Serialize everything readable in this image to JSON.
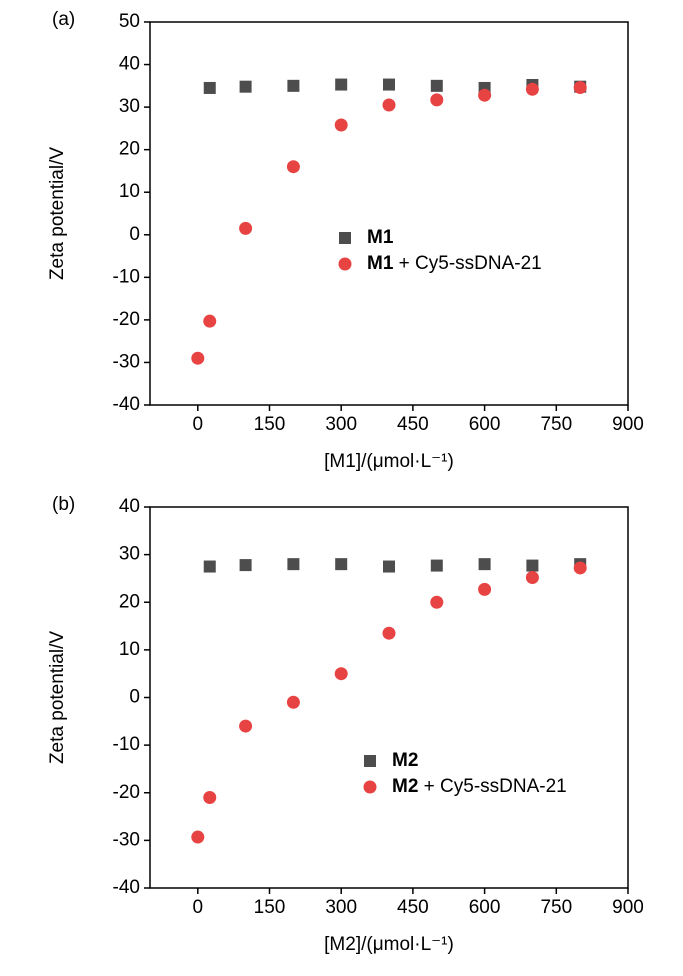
{
  "chart_data": [
    {
      "type": "scatter",
      "panel_label": "(a)",
      "x_label": "[M1]/(μmol·L⁻¹)",
      "y_label": "Zeta potential/V",
      "xlim": [
        -100,
        900
      ],
      "xticks": [
        0,
        150,
        300,
        450,
        600,
        750,
        900
      ],
      "ylim": [
        -40,
        50
      ],
      "yticks": [
        -40,
        -30,
        -20,
        -10,
        0,
        10,
        20,
        30,
        40,
        50
      ],
      "series": [
        {
          "name": "M1",
          "color": "#4d4d4d",
          "marker": "square",
          "x": [
            25,
            100,
            200,
            300,
            400,
            500,
            600,
            700,
            800
          ],
          "values": [
            34.5,
            34.8,
            35,
            35.3,
            35.3,
            35,
            34.5,
            35.2,
            34.8
          ]
        },
        {
          "name": "M1 + Cy5-ssDNA-21",
          "color": "#e84343",
          "marker": "circle",
          "x": [
            0,
            25,
            100,
            200,
            300,
            400,
            500,
            600,
            700,
            800
          ],
          "values": [
            -29,
            -20.3,
            1.5,
            16,
            25.8,
            30.5,
            31.7,
            32.8,
            34.2,
            34.6
          ]
        }
      ]
    },
    {
      "type": "scatter",
      "panel_label": "(b)",
      "x_label": "[M2]/(μmol·L⁻¹)",
      "y_label": "Zeta potential/V",
      "xlim": [
        -100,
        900
      ],
      "xticks": [
        0,
        150,
        300,
        450,
        600,
        750,
        900
      ],
      "ylim": [
        -40,
        40
      ],
      "yticks": [
        -40,
        -30,
        -20,
        -10,
        0,
        10,
        20,
        30,
        40
      ],
      "series": [
        {
          "name": "M2",
          "color": "#4d4d4d",
          "marker": "square",
          "x": [
            25,
            100,
            200,
            300,
            400,
            500,
            600,
            700,
            800
          ],
          "values": [
            27.5,
            27.8,
            28,
            28,
            27.5,
            27.7,
            28,
            27.7,
            28
          ]
        },
        {
          "name": "M2 + Cy5-ssDNA-21",
          "color": "#e84343",
          "marker": "circle",
          "x": [
            0,
            25,
            100,
            200,
            300,
            400,
            500,
            600,
            700,
            800
          ],
          "values": [
            -29.3,
            -21,
            -6,
            -1,
            5,
            13.5,
            20,
            22.7,
            25.2,
            27.2
          ]
        }
      ]
    }
  ]
}
